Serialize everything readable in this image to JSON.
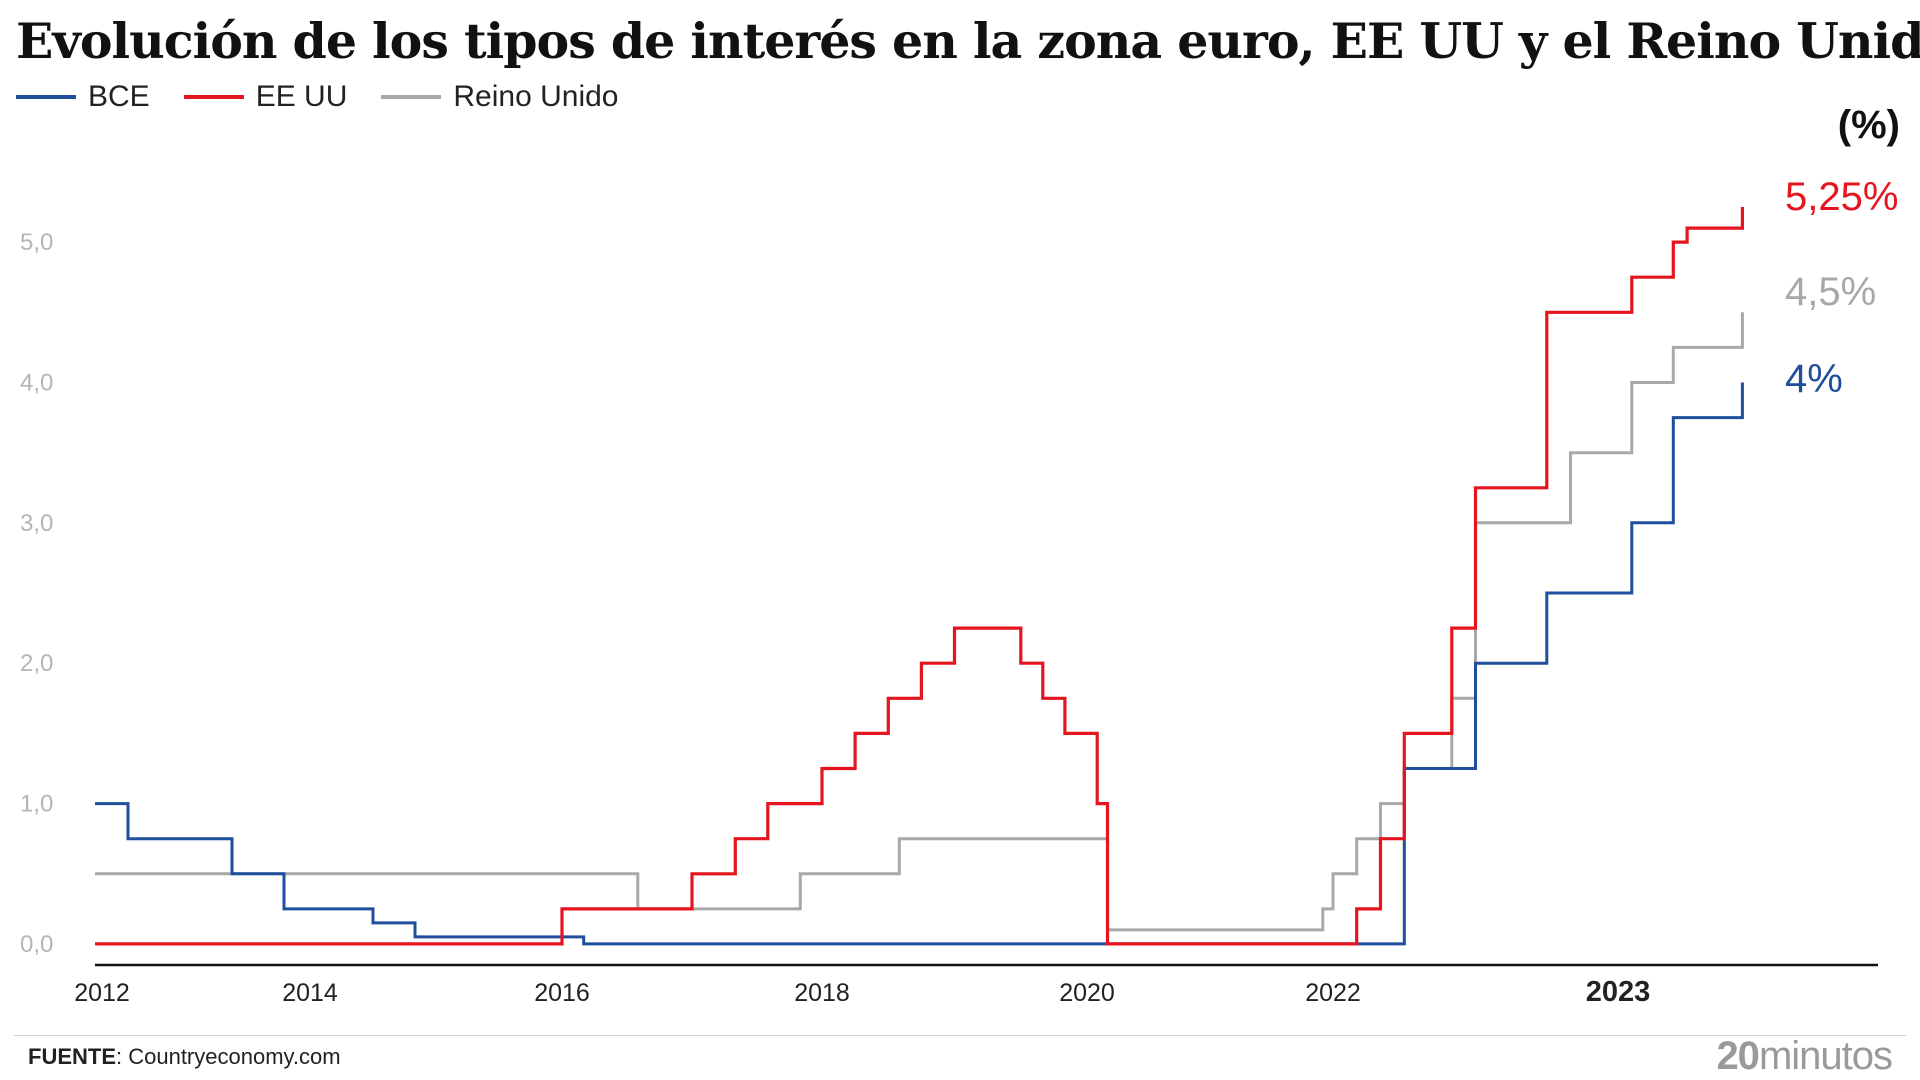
{
  "title": "Evolución de los tipos de interés en la zona euro, EE UU y el Reino Unido",
  "unit_label": "(%)",
  "source": {
    "label": "FUENTE",
    "text": ": Countryeconomy.com"
  },
  "brand": {
    "num": "20",
    "text": "minutos"
  },
  "chart_data": {
    "type": "line",
    "title": "Evolución de los tipos de interés en la zona euro, EE UU y el Reino Unido",
    "xlabel": "",
    "ylabel": "(%)",
    "ylim": [
      -0.15,
      5.3
    ],
    "yticks": [
      0.0,
      1.0,
      2.0,
      3.0,
      4.0,
      5.0
    ],
    "ytick_labels": [
      "0,0",
      "1,0",
      "2,0",
      "3,0",
      "4,0",
      "5,0"
    ],
    "xticks": [
      {
        "x": "2012-01",
        "label": "2012",
        "bold": false
      },
      {
        "x": "2014-01",
        "label": "2014",
        "bold": false
      },
      {
        "x": "2016-01",
        "label": "2016",
        "bold": false
      },
      {
        "x": "2018-01",
        "label": "2018",
        "bold": false
      },
      {
        "x": "2020-01",
        "label": "2020",
        "bold": false
      },
      {
        "x": "2022-01",
        "label": "2022",
        "bold": false
      },
      {
        "x": "2023-01",
        "label": "2023",
        "bold": true
      }
    ],
    "grid": false,
    "legend": "top-left",
    "series": [
      {
        "name": "BCE",
        "color": "#1f4e9c",
        "end_label": "4%",
        "points": [
          [
            "2011-11",
            1.0
          ],
          [
            "2012-04",
            1.0
          ],
          [
            "2012-04",
            0.75
          ],
          [
            "2013-04",
            0.75
          ],
          [
            "2013-04",
            0.5
          ],
          [
            "2013-10",
            0.5
          ],
          [
            "2013-10",
            0.25
          ],
          [
            "2014-07",
            0.25
          ],
          [
            "2014-07",
            0.15
          ],
          [
            "2014-11",
            0.15
          ],
          [
            "2014-11",
            0.05
          ],
          [
            "2016-03",
            0.05
          ],
          [
            "2016-03",
            0.0
          ],
          [
            "2022-04",
            0.0
          ],
          [
            "2022-04",
            1.25
          ],
          [
            "2022-07",
            1.25
          ],
          [
            "2022-07",
            2.0
          ],
          [
            "2022-10",
            2.0
          ],
          [
            "2022-10",
            2.5
          ],
          [
            "2023-02",
            2.5
          ],
          [
            "2023-02",
            3.0
          ],
          [
            "2023-05",
            3.0
          ],
          [
            "2023-05",
            3.75
          ],
          [
            "2023-10",
            3.75
          ],
          [
            "2023-10",
            4.0
          ]
        ]
      },
      {
        "name": "EE UU",
        "color": "#e5151f",
        "end_label": "5,25%",
        "points": [
          [
            "2011-11",
            0.0
          ],
          [
            "2016-01",
            0.0
          ],
          [
            "2016-01",
            0.25
          ],
          [
            "2017-01",
            0.25
          ],
          [
            "2017-01",
            0.5
          ],
          [
            "2017-05",
            0.5
          ],
          [
            "2017-05",
            0.75
          ],
          [
            "2017-08",
            0.75
          ],
          [
            "2017-08",
            1.0
          ],
          [
            "2018-01",
            1.0
          ],
          [
            "2018-01",
            1.25
          ],
          [
            "2018-04",
            1.25
          ],
          [
            "2018-04",
            1.5
          ],
          [
            "2018-07",
            1.5
          ],
          [
            "2018-07",
            1.75
          ],
          [
            "2018-10",
            1.75
          ],
          [
            "2018-10",
            2.0
          ],
          [
            "2019-01",
            2.0
          ],
          [
            "2019-01",
            2.25
          ],
          [
            "2019-07",
            2.25
          ],
          [
            "2019-07",
            2.0
          ],
          [
            "2019-09",
            2.0
          ],
          [
            "2019-09",
            1.75
          ],
          [
            "2019-11",
            1.75
          ],
          [
            "2019-11",
            1.5
          ],
          [
            "2020-02",
            1.5
          ],
          [
            "2020-02",
            1.0
          ],
          [
            "2020-03",
            1.0
          ],
          [
            "2020-03",
            0.0
          ],
          [
            "2022-02",
            0.0
          ],
          [
            "2022-02",
            0.25
          ],
          [
            "2022-03",
            0.25
          ],
          [
            "2022-03",
            0.75
          ],
          [
            "2022-04",
            0.75
          ],
          [
            "2022-04",
            1.5
          ],
          [
            "2022-06",
            1.5
          ],
          [
            "2022-06",
            2.25
          ],
          [
            "2022-07",
            2.25
          ],
          [
            "2022-07",
            3.25
          ],
          [
            "2022-10",
            3.25
          ],
          [
            "2022-10",
            4.5
          ],
          [
            "2023-02",
            4.5
          ],
          [
            "2023-02",
            4.75
          ],
          [
            "2023-05",
            4.75
          ],
          [
            "2023-05",
            5.0
          ],
          [
            "2023-06",
            5.0
          ],
          [
            "2023-06",
            5.1
          ],
          [
            "2023-10",
            5.1
          ],
          [
            "2023-10",
            5.25
          ]
        ]
      },
      {
        "name": "Reino Unido",
        "color": "#a8a8a8",
        "end_label": "4,5%",
        "points": [
          [
            "2011-11",
            0.5
          ],
          [
            "2016-08",
            0.5
          ],
          [
            "2016-08",
            0.25
          ],
          [
            "2017-11",
            0.25
          ],
          [
            "2017-11",
            0.5
          ],
          [
            "2018-08",
            0.5
          ],
          [
            "2018-08",
            0.75
          ],
          [
            "2020-03",
            0.75
          ],
          [
            "2020-03",
            0.1
          ],
          [
            "2021-12",
            0.1
          ],
          [
            "2021-12",
            0.25
          ],
          [
            "2022-01",
            0.25
          ],
          [
            "2022-01",
            0.5
          ],
          [
            "2022-02",
            0.5
          ],
          [
            "2022-02",
            0.75
          ],
          [
            "2022-03",
            0.75
          ],
          [
            "2022-03",
            1.0
          ],
          [
            "2022-04",
            1.0
          ],
          [
            "2022-04",
            1.25
          ],
          [
            "2022-06",
            1.25
          ],
          [
            "2022-06",
            1.75
          ],
          [
            "2022-07",
            1.75
          ],
          [
            "2022-07",
            3.0
          ],
          [
            "2022-11",
            3.0
          ],
          [
            "2022-11",
            3.5
          ],
          [
            "2023-02",
            3.5
          ],
          [
            "2023-02",
            4.0
          ],
          [
            "2023-05",
            4.0
          ],
          [
            "2023-05",
            4.25
          ],
          [
            "2023-10",
            4.25
          ],
          [
            "2023-10",
            4.5
          ]
        ]
      }
    ]
  }
}
